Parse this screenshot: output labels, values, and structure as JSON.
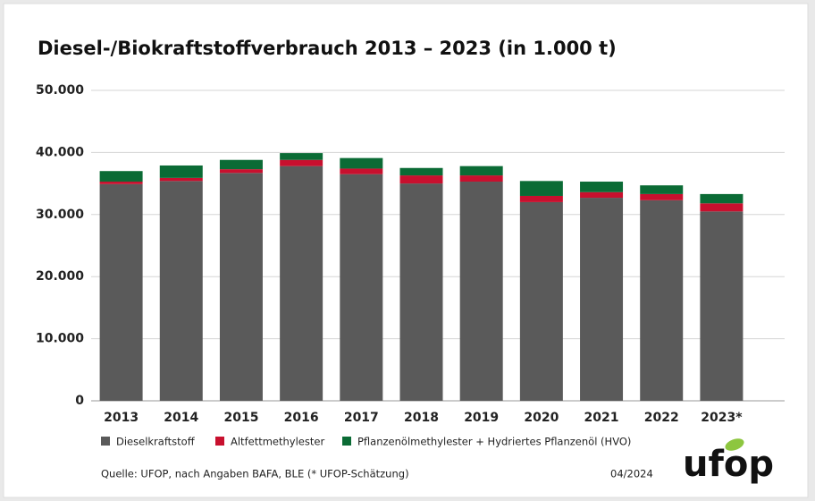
{
  "chart_data": {
    "type": "bar",
    "stacked": true,
    "title": "Diesel-/Biokraftstoffverbrauch 2013 – 2023 (in 1.000 t)",
    "categories": [
      "2013",
      "2014",
      "2015",
      "2016",
      "2017",
      "2018",
      "2019",
      "2020",
      "2021",
      "2022",
      "2023*"
    ],
    "series": [
      {
        "name": "Dieselkraftstoff",
        "color": "#5a5a5a",
        "values": [
          34900,
          35400,
          36700,
          37800,
          36500,
          35000,
          35300,
          32000,
          32700,
          32300,
          30500
        ]
      },
      {
        "name": "Altfettmethylester",
        "color": "#c8102e",
        "values": [
          400,
          500,
          600,
          1000,
          900,
          1300,
          1000,
          1000,
          900,
          1000,
          1300
        ]
      },
      {
        "name": "Pflanzenölmethylester + Hydriertes Pflanzenöl (HVO)",
        "color": "#0b6b35",
        "values": [
          1700,
          2000,
          1500,
          1100,
          1700,
          1200,
          1500,
          2400,
          1700,
          1400,
          1500
        ]
      }
    ],
    "ylim": [
      0,
      50000
    ],
    "yticks": [
      0,
      {
        "value": 10000,
        "label": "10.000"
      },
      {
        "value": 20000,
        "label": "20.000"
      },
      {
        "value": 30000,
        "label": "30.000"
      },
      {
        "value": 40000,
        "label": "40.000"
      },
      {
        "value": 50000,
        "label": "50.000"
      }
    ],
    "grid": true,
    "legend": "bottom",
    "source": "Quelle: UFOP, nach Angaben BAFA, BLE (* UFOP-Schätzung)",
    "date": "04/2024",
    "logo": "ufop"
  }
}
